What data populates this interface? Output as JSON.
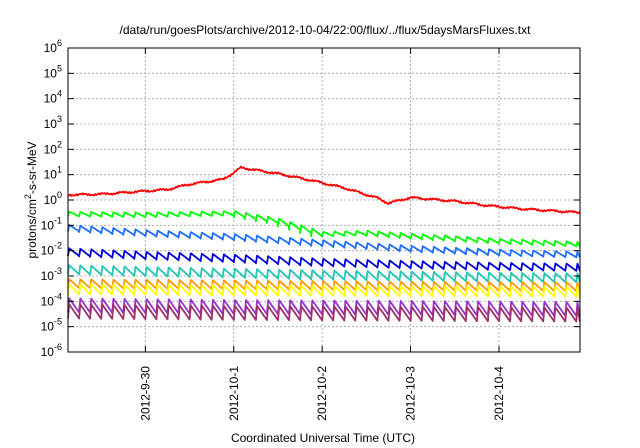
{
  "chart_data": {
    "type": "line",
    "title": "/data/run/goesPlots/archive/2012-10-04/22:00/flux/../flux/5daysMarsFluxes.txt",
    "xlabel": "Coordinated Universal Time (UTC)",
    "ylabel": {
      "prefix": "protons/cm",
      "sup": "2",
      "suffix": "-s-sr-MeV"
    },
    "y_scale": "log",
    "ylim": [
      1e-06,
      1000000.0
    ],
    "y_ticks": [
      {
        "value": 1e-06,
        "exp": "-6"
      },
      {
        "value": 1e-05,
        "exp": "-5"
      },
      {
        "value": 0.0001,
        "exp": "-4"
      },
      {
        "value": 0.001,
        "exp": "-3"
      },
      {
        "value": 0.01,
        "exp": "-2"
      },
      {
        "value": 0.1,
        "exp": "-1"
      },
      {
        "value": 1,
        "exp": "0"
      },
      {
        "value": 10,
        "exp": "1"
      },
      {
        "value": 100,
        "exp": "2"
      },
      {
        "value": 1000,
        "exp": "3"
      },
      {
        "value": 10000,
        "exp": "4"
      },
      {
        "value": 100000,
        "exp": "5"
      },
      {
        "value": 1000000,
        "exp": "6"
      }
    ],
    "xlim": [
      "2012-09-29T03:00",
      "2012-10-04T22:00"
    ],
    "x_ticks": [
      {
        "label": "2012-9-30",
        "date": "2012-09-30T00:00"
      },
      {
        "label": "2012-10-1",
        "date": "2012-10-01T00:00"
      },
      {
        "label": "2012-10-2",
        "date": "2012-10-02T00:00"
      },
      {
        "label": "2012-10-3",
        "date": "2012-10-03T00:00"
      },
      {
        "label": "2012-10-4",
        "date": "2012-10-04T00:00"
      }
    ],
    "grid": true,
    "legend": "none",
    "sawtooth_period_hours": 3,
    "series": [
      {
        "color": "#ff0000",
        "style": "smooth",
        "points": [
          [
            "2012-09-29T03:00",
            1.6
          ],
          [
            "2012-09-29T12:00",
            1.7
          ],
          [
            "2012-09-29T21:00",
            2.1
          ],
          [
            "2012-09-30T06:00",
            2.6
          ],
          [
            "2012-09-30T12:00",
            4.2
          ],
          [
            "2012-09-30T21:00",
            6.5
          ],
          [
            "2012-10-01T00:00",
            12
          ],
          [
            "2012-10-01T02:00",
            19
          ],
          [
            "2012-10-01T12:00",
            11
          ],
          [
            "2012-10-01T21:00",
            6
          ],
          [
            "2012-10-02T06:00",
            3
          ],
          [
            "2012-10-02T15:00",
            1.2
          ],
          [
            "2012-10-02T18:00",
            0.75
          ],
          [
            "2012-10-03T00:00",
            1.25
          ],
          [
            "2012-10-03T12:00",
            0.9
          ],
          [
            "2012-10-03T21:00",
            0.6
          ],
          [
            "2012-10-04T06:00",
            0.45
          ],
          [
            "2012-10-04T22:00",
            0.32
          ]
        ]
      },
      {
        "color": "#00ff00",
        "style": "sawtooth",
        "amplitude_decades": 0.18,
        "points": [
          [
            "2012-09-29T03:00",
            0.28
          ],
          [
            "2012-09-30T00:00",
            0.26
          ],
          [
            "2012-10-01T00:00",
            0.3
          ],
          [
            "2012-10-01T12:00",
            0.15
          ],
          [
            "2012-10-02T00:00",
            0.045
          ],
          [
            "2012-10-02T12:00",
            0.05
          ],
          [
            "2012-10-03T00:00",
            0.038
          ],
          [
            "2012-10-03T12:00",
            0.03
          ],
          [
            "2012-10-04T00:00",
            0.024
          ],
          [
            "2012-10-04T22:00",
            0.018
          ]
        ]
      },
      {
        "color": "#1e6eff",
        "style": "sawtooth",
        "amplitude_decades": 0.22,
        "points": [
          [
            "2012-09-29T03:00",
            0.08
          ],
          [
            "2012-09-30T00:00",
            0.05
          ],
          [
            "2012-10-01T00:00",
            0.035
          ],
          [
            "2012-10-02T00:00",
            0.02
          ],
          [
            "2012-10-03T00:00",
            0.012
          ],
          [
            "2012-10-04T00:00",
            0.0085
          ],
          [
            "2012-10-04T22:00",
            0.007
          ]
        ]
      },
      {
        "color": "#0000dd",
        "style": "sawtooth",
        "amplitude_decades": 0.28,
        "points": [
          [
            "2012-09-29T03:00",
            0.009
          ],
          [
            "2012-09-30T00:00",
            0.0065
          ],
          [
            "2012-10-01T00:00",
            0.005
          ],
          [
            "2012-10-02T00:00",
            0.0035
          ],
          [
            "2012-10-03T00:00",
            0.0028
          ],
          [
            "2012-10-04T00:00",
            0.0024
          ],
          [
            "2012-10-04T22:00",
            0.0022
          ]
        ]
      },
      {
        "color": "#20c8b4",
        "style": "sawtooth",
        "amplitude_decades": 0.35,
        "points": [
          [
            "2012-09-29T03:00",
            0.0018
          ],
          [
            "2012-09-30T00:00",
            0.0015
          ],
          [
            "2012-10-01T00:00",
            0.0013
          ],
          [
            "2012-10-02T00:00",
            0.0011
          ],
          [
            "2012-10-03T00:00",
            0.001
          ],
          [
            "2012-10-04T00:00",
            0.0009
          ],
          [
            "2012-10-04T22:00",
            0.00085
          ]
        ]
      },
      {
        "color": "#ff9a00",
        "style": "sawtooth",
        "amplitude_decades": 0.35,
        "points": [
          [
            "2012-09-29T03:00",
            0.0005
          ],
          [
            "2012-10-01T00:00",
            0.00045
          ],
          [
            "2012-10-03T00:00",
            0.0004
          ],
          [
            "2012-10-04T22:00",
            0.00038
          ]
        ]
      },
      {
        "color": "#ffff00",
        "style": "sawtooth",
        "amplitude_decades": 0.4,
        "points": [
          [
            "2012-09-29T03:00",
            0.0003
          ],
          [
            "2012-10-01T00:00",
            0.00027
          ],
          [
            "2012-10-03T00:00",
            0.00025
          ],
          [
            "2012-10-04T22:00",
            0.00024
          ]
        ]
      },
      {
        "color": "#9932cc",
        "style": "sawtooth",
        "amplitude_decades": 0.55,
        "points": [
          [
            "2012-09-29T03:00",
            7e-05
          ],
          [
            "2012-10-01T00:00",
            6e-05
          ],
          [
            "2012-10-03T00:00",
            5.5e-05
          ],
          [
            "2012-10-04T22:00",
            5e-05
          ]
        ]
      },
      {
        "color": "#a0306a",
        "style": "sawtooth",
        "amplitude_decades": 0.55,
        "points": [
          [
            "2012-09-29T03:00",
            4e-05
          ],
          [
            "2012-10-01T00:00",
            3.5e-05
          ],
          [
            "2012-10-03T00:00",
            3.2e-05
          ],
          [
            "2012-10-04T22:00",
            3e-05
          ]
        ]
      }
    ]
  }
}
